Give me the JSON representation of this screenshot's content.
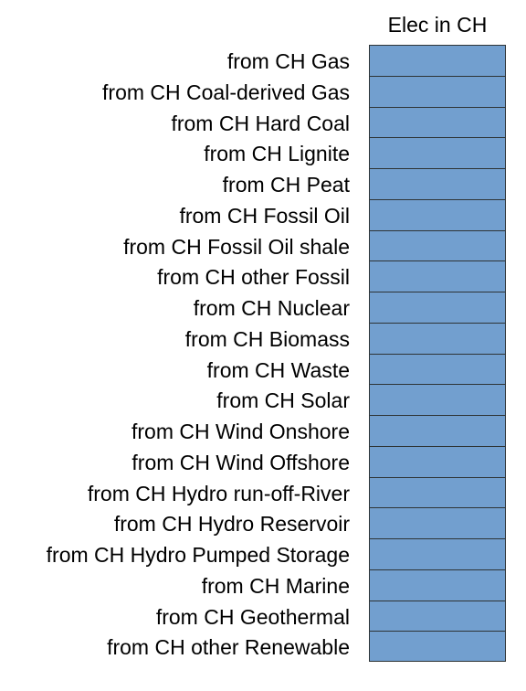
{
  "header": {
    "column_title": "Elec in CH"
  },
  "colors": {
    "cell_fill": "#729fcf",
    "cell_border": "#2e3436"
  },
  "rows": [
    {
      "label": "from CH Gas"
    },
    {
      "label": "from CH Coal-derived Gas"
    },
    {
      "label": "from CH Hard Coal"
    },
    {
      "label": "from CH Lignite"
    },
    {
      "label": "from CH Peat"
    },
    {
      "label": "from CH Fossil Oil"
    },
    {
      "label": "from CH Fossil Oil shale"
    },
    {
      "label": "from CH other Fossil"
    },
    {
      "label": "from CH Nuclear"
    },
    {
      "label": "from CH Biomass"
    },
    {
      "label": "from CH Waste"
    },
    {
      "label": "from CH Solar"
    },
    {
      "label": "from CH Wind Onshore"
    },
    {
      "label": "from CH Wind Offshore"
    },
    {
      "label": "from CH Hydro run-off-River"
    },
    {
      "label": "from CH Hydro Reservoir"
    },
    {
      "label": "from CH Hydro Pumped Storage"
    },
    {
      "label": "from CH Marine"
    },
    {
      "label": "from CH Geothermal"
    },
    {
      "label": "from CH other Renewable"
    }
  ]
}
